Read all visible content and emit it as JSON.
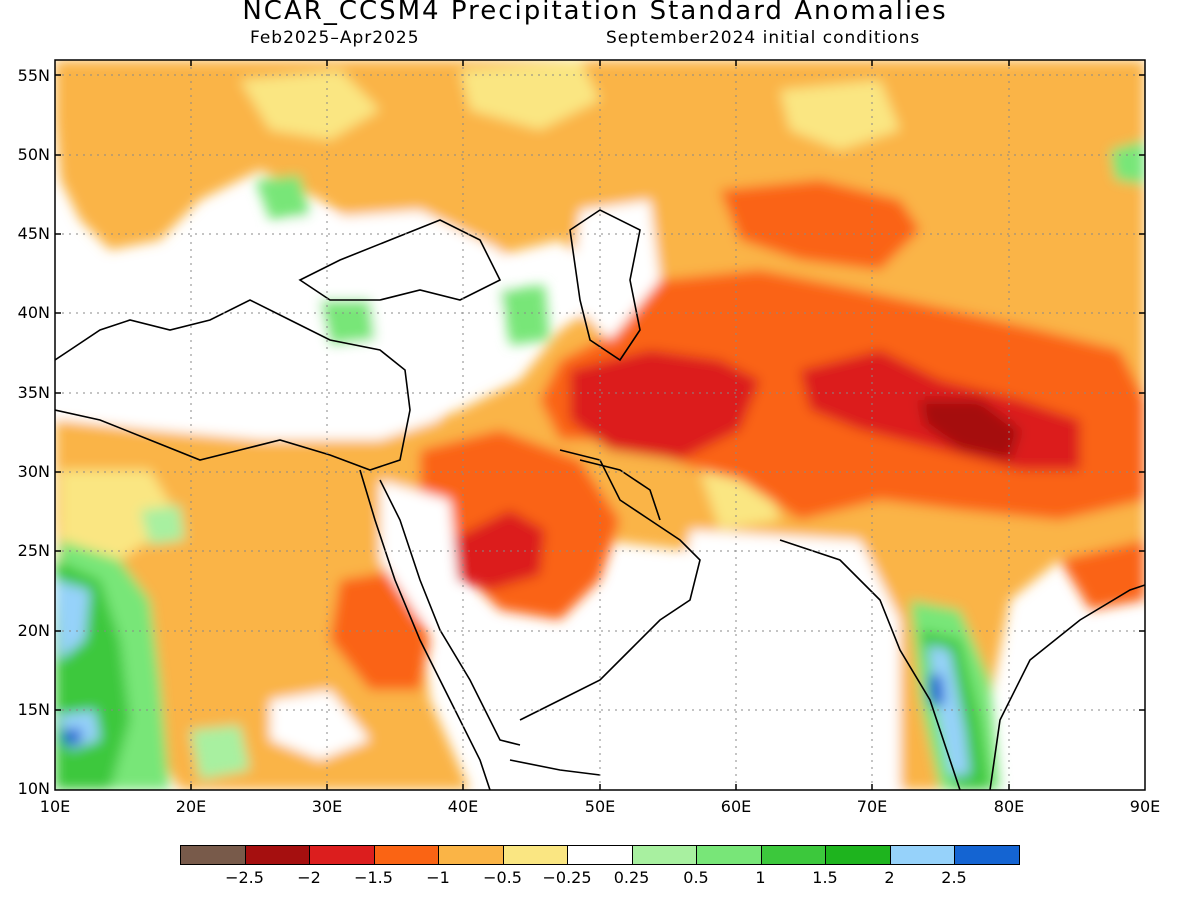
{
  "header": {
    "title": "NCAR_CCSM4 Precipitation Standard Anomalies",
    "period": "Feb2025–Apr2025",
    "initial_conditions": "September2024 initial conditions"
  },
  "axes": {
    "lat_labels": [
      "55N",
      "50N",
      "45N",
      "40N",
      "35N",
      "30N",
      "25N",
      "20N",
      "15N",
      "10N"
    ],
    "lon_labels": [
      "10E",
      "20E",
      "30E",
      "40E",
      "50E",
      "60E",
      "70E",
      "80E",
      "90E"
    ],
    "lat_range": [
      10,
      56
    ],
    "lon_range": [
      10,
      90
    ],
    "grid": "dotted"
  },
  "colorbar": {
    "colors": [
      "#785a4a",
      "#a50f0f",
      "#dc1e1e",
      "#fa6414",
      "#fab446",
      "#fae682",
      "#ffffff",
      "#a8f0a0",
      "#78e678",
      "#3cc83c",
      "#1eb41e",
      "#96d2fa",
      "#1464d2"
    ],
    "labels": [
      "−2.5",
      "−2",
      "−1.5",
      "−1",
      "−0.5",
      "−0.25",
      "0.25",
      "0.5",
      "1",
      "1.5",
      "2",
      "2.5"
    ]
  },
  "legend_colors": {
    "ocean": "#ffffff",
    "coast": "#000000"
  }
}
